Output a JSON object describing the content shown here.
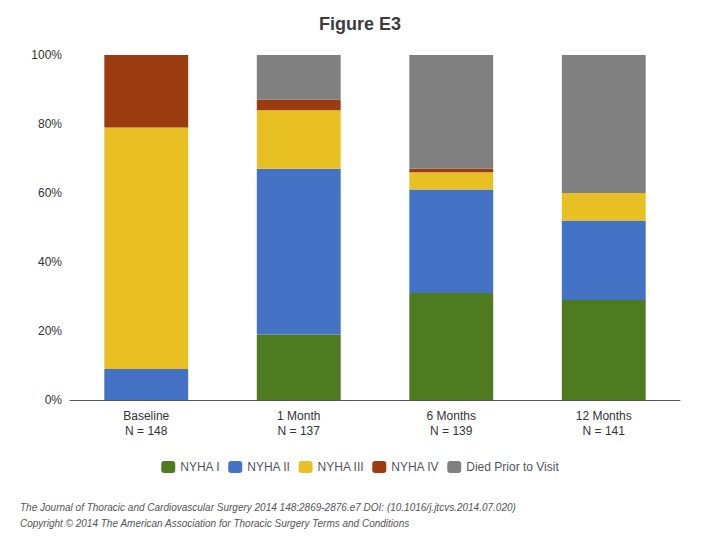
{
  "chart_data": {
    "type": "bar",
    "title": "Figure E3",
    "categories": [
      "Baseline\nN = 148",
      "1 Month\nN = 137",
      "6 Months\nN = 139",
      "12 Months\nN = 141"
    ],
    "series": [
      {
        "name": "NYHA I",
        "color": "#4E7A20",
        "values": [
          0.0,
          19.0,
          31.0,
          29.0
        ]
      },
      {
        "name": "NYHA II",
        "color": "#4472C4",
        "values": [
          9.0,
          48.0,
          30.0,
          23.0
        ]
      },
      {
        "name": "NYHA III",
        "color": "#E8C024",
        "values": [
          70.0,
          17.0,
          5.0,
          8.0
        ]
      },
      {
        "name": "NYHA IV",
        "color": "#9C3B10",
        "values": [
          21.0,
          3.0,
          1.0,
          0.0
        ]
      },
      {
        "name": "Died Prior to Visit",
        "color": "#808080",
        "values": [
          0.0,
          13.0,
          33.0,
          40.0
        ]
      }
    ],
    "stacked": true,
    "ylim": [
      0,
      100
    ],
    "yticks": [
      {
        "value": 0,
        "label": "0%"
      },
      {
        "value": 20,
        "label": "20%"
      },
      {
        "value": 40,
        "label": "40%"
      },
      {
        "value": 60,
        "label": "60%"
      },
      {
        "value": 80,
        "label": "80%"
      },
      {
        "value": 100,
        "label": "100%"
      }
    ],
    "grid": false,
    "legend": "bottom",
    "annotations": [
      "The Journal of Thoracic and Cardiovascular Surgery 2014 148:2869-2876.e7 DOI: (10.1016/j.jtcvs.2014.07.020)",
      "Copyright © 2014 The American Association for Thoracic Surgery Terms and Conditions"
    ]
  }
}
